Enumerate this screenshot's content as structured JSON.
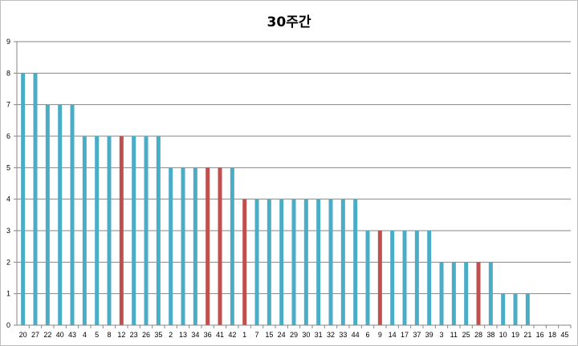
{
  "chart_data": {
    "type": "bar",
    "title": "30주간",
    "xlabel": "",
    "ylabel": "",
    "ylim": [
      0,
      9
    ],
    "yticks": [
      0,
      1,
      2,
      3,
      4,
      5,
      6,
      7,
      8,
      9
    ],
    "grid": true,
    "legend": "none",
    "categories": [
      "20",
      "27",
      "22",
      "40",
      "43",
      "4",
      "5",
      "8",
      "12",
      "23",
      "26",
      "35",
      "2",
      "13",
      "34",
      "36",
      "41",
      "42",
      "1",
      "7",
      "15",
      "24",
      "29",
      "30",
      "31",
      "32",
      "33",
      "44",
      "6",
      "9",
      "14",
      "17",
      "37",
      "39",
      "3",
      "11",
      "25",
      "28",
      "38",
      "10",
      "19",
      "21",
      "16",
      "18",
      "45"
    ],
    "values": [
      8,
      8,
      7,
      7,
      7,
      6,
      6,
      6,
      6,
      6,
      6,
      6,
      5,
      5,
      5,
      5,
      5,
      5,
      4,
      4,
      4,
      4,
      4,
      4,
      4,
      4,
      4,
      4,
      3,
      3,
      3,
      3,
      3,
      3,
      2,
      2,
      2,
      2,
      2,
      1,
      1,
      1,
      0,
      0,
      0
    ],
    "highlighted": [
      "12",
      "36",
      "41",
      "1",
      "9",
      "28"
    ],
    "colors": {
      "bar": "#4bacc6",
      "highlight": "#c0504d"
    }
  }
}
